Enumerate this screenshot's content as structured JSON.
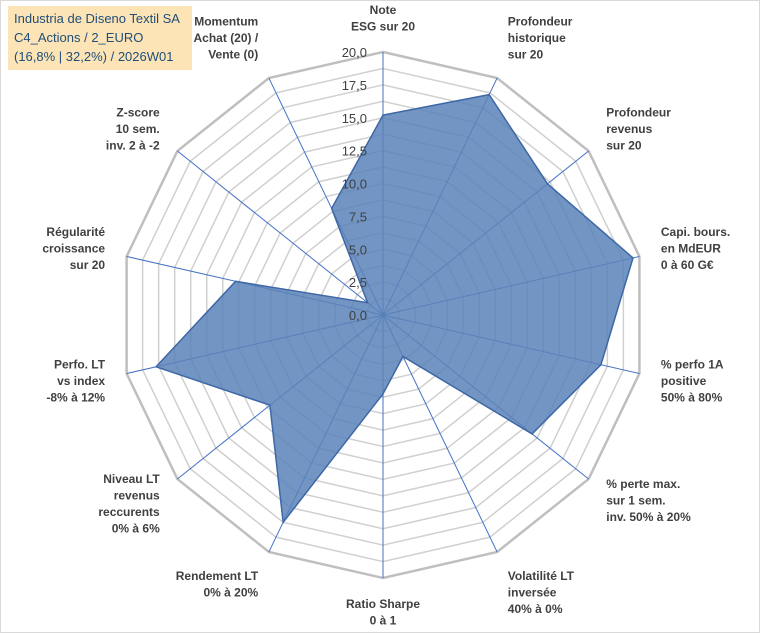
{
  "title_box": {
    "line1": "Industria de Diseno Textil SA",
    "line2": "C4_Actions / 2_EURO",
    "line3": "(16,8% | 32,2%) / 2026W01"
  },
  "colors": {
    "fill": "#5b82b8",
    "stroke": "#3d67a6",
    "grid": "#d0d0d0",
    "outer": "#bfbfbf",
    "spoke": "#4472c4",
    "title_bg": "#fce4b6",
    "title_text": "#1f4e79"
  },
  "chart_data": {
    "type": "radar",
    "rlim": [
      0,
      20
    ],
    "ticks": [
      "0,0",
      "2,5",
      "5,0",
      "7,5",
      "10,0",
      "12,5",
      "15,0",
      "17,5",
      "20,0"
    ],
    "categories": [
      "Note\nESG sur 20",
      "Profondeur\nhistorique\nsur 20",
      "Profondeur\nrevenus\nsur 20",
      "Capi. bours.\nen MdEUR\n0 à 60 G€",
      "% perfo 1A\npositive\n50% à 80%",
      "% perte max.\nsur 1 sem.\ninv. 50% à 20%",
      "Volatilité LT\ninversée\n40% à 0%",
      "Ratio Sharpe\n0 à 1",
      "Rendement LT\n0% à 20%",
      "Niveau LT\nrevenus\nreccurents\n0% à 6%",
      "Perfo. LT\nvs index\n-8% à 12%",
      "Régularité\ncroissance\nsur 20",
      "Z-score\n10 sem.\ninv. 2 à -2",
      "Momentum\nAchat (20) /\nVente (0)"
    ],
    "series": [
      {
        "name": "Industria de Diseno Textil SA",
        "values": [
          15.2,
          18.6,
          16.0,
          19.5,
          17.0,
          14.5,
          3.5,
          6.0,
          17.5,
          11.0,
          17.7,
          11.5,
          1.5,
          9.0
        ]
      }
    ]
  }
}
